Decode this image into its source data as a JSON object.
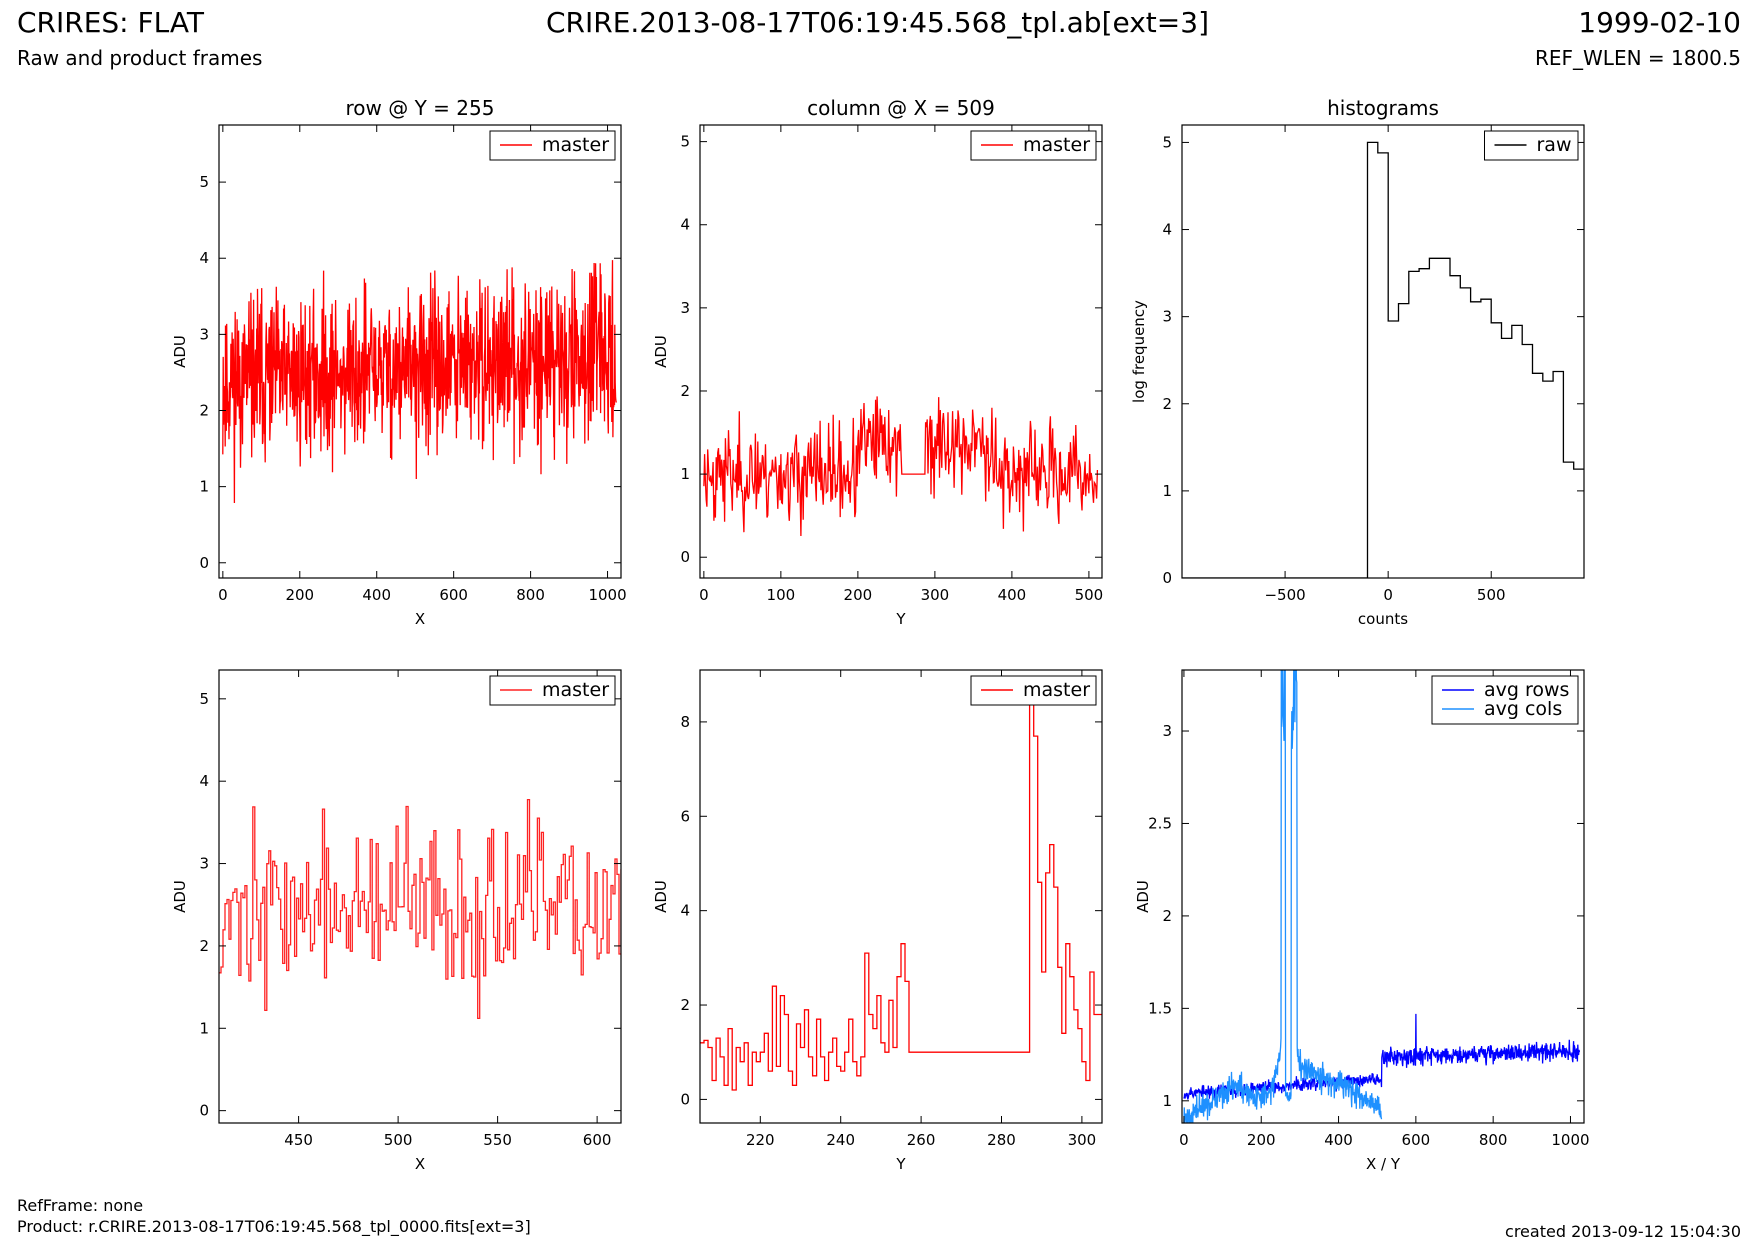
{
  "header": {
    "title_left": "CRIRES: FLAT",
    "subtitle_left": "Raw and product frames",
    "title_center": "CRIRE.2013-08-17T06:19:45.568_tpl.ab[ext=3]",
    "title_right": "1999-02-10",
    "subtitle_right": "REF_WLEN = 1800.5"
  },
  "footer": {
    "refframe": "RefFrame: none",
    "product": "Product: r.CRIRE.2013-08-17T06:19:45.568_tpl_0000.fits[ext=3]",
    "created": "created 2013-09-12 15:04:30"
  },
  "colors": {
    "master": "#ff0000",
    "raw": "#000000",
    "avg_rows": "#0000ff",
    "avg_cols": "#1e90ff"
  },
  "chart_data": [
    {
      "type": "line",
      "title": "row @ Y = 255",
      "xlabel": "X",
      "ylabel": "ADU",
      "xlim": [
        -10,
        1035
      ],
      "ylim": [
        -0.2,
        5.75
      ],
      "xticks": [
        0,
        200,
        400,
        600,
        800,
        1000
      ],
      "yticks": [
        0,
        1,
        2,
        3,
        4,
        5
      ],
      "legend": "top-right",
      "series": [
        {
          "name": "master",
          "color": "#ff0000",
          "step": false,
          "generator": {
            "kind": "noise",
            "x0": 0,
            "x1": 1023,
            "n": 1024,
            "base": 2.55,
            "amp": 0.75,
            "trend": 0.35,
            "seed": 11,
            "lo": 0.2,
            "hi": 4.5
          }
        }
      ]
    },
    {
      "type": "line",
      "title": "column @ X = 509",
      "xlabel": "Y",
      "ylabel": "ADU",
      "xlim": [
        -5,
        517
      ],
      "ylim": [
        -0.25,
        5.2
      ],
      "xticks": [
        0,
        100,
        200,
        300,
        400,
        500
      ],
      "yticks": [
        0,
        1,
        2,
        3,
        4,
        5
      ],
      "legend": "top-right",
      "series": [
        {
          "name": "master",
          "color": "#ff0000",
          "step": false,
          "generator": {
            "kind": "column",
            "x0": 0,
            "x1": 511,
            "n": 512,
            "flat_from": 257,
            "flat_to": 287,
            "flat_value": 1.0,
            "base": 1.0,
            "amp": 0.4,
            "seed": 23,
            "spikes": [
              [
                286,
                2.8
              ],
              [
                288,
                5.2
              ],
              [
                290,
                4.9
              ],
              [
                292,
                3.4
              ],
              [
                294,
                2.7
              ],
              [
                296,
                3.6
              ],
              [
                250,
                2.6
              ],
              [
                244,
                3.1
              ],
              [
                254,
                3.3
              ],
              [
                366,
                3.4
              ],
              [
                180,
                2.5
              ],
              [
                130,
                2.4
              ]
            ]
          }
        }
      ]
    },
    {
      "type": "line",
      "title": "histograms",
      "xlabel": "counts",
      "ylabel": "log frequency",
      "xlim": [
        -1000,
        950
      ],
      "ylim": [
        0,
        5.2
      ],
      "xticks": [
        -500,
        0,
        500
      ],
      "yticks": [
        0,
        1,
        2,
        3,
        4,
        5
      ],
      "legend": "top-right",
      "series": [
        {
          "name": "raw",
          "color": "#000000",
          "step": true,
          "x": [
            -1000,
            -100,
            -100,
            -50,
            0,
            50,
            100,
            150,
            200,
            250,
            300,
            350,
            400,
            450,
            500,
            550,
            600,
            650,
            700,
            750,
            800,
            850,
            900,
            950
          ],
          "y": [
            0,
            0,
            5.0,
            4.88,
            2.95,
            3.15,
            3.52,
            3.55,
            3.67,
            3.67,
            3.47,
            3.33,
            3.17,
            3.2,
            2.93,
            2.75,
            2.9,
            2.68,
            2.35,
            2.26,
            2.37,
            1.33,
            1.25,
            1.25
          ]
        }
      ]
    },
    {
      "type": "line",
      "title": "",
      "xlabel": "X",
      "ylabel": "ADU",
      "xlim": [
        410,
        612
      ],
      "ylim": [
        -0.15,
        5.35
      ],
      "xticks": [
        450,
        500,
        550,
        600
      ],
      "yticks": [
        0,
        1,
        2,
        3,
        4,
        5
      ],
      "legend": "top-right",
      "series": [
        {
          "name": "master",
          "color": "#ff2222",
          "step": true,
          "generator": {
            "kind": "noise",
            "x0": 410,
            "x1": 612,
            "n": 203,
            "base": 2.45,
            "amp": 0.7,
            "trend": 0,
            "seed": 37,
            "lo": 0.3,
            "hi": 4.2
          }
        }
      ]
    },
    {
      "type": "line",
      "title": "",
      "xlabel": "Y",
      "ylabel": "ADU",
      "xlim": [
        205,
        305
      ],
      "ylim": [
        -0.5,
        9.1
      ],
      "xticks": [
        220,
        240,
        260,
        280,
        300
      ],
      "yticks": [
        0,
        2,
        4,
        6,
        8
      ],
      "legend": "top-right",
      "series": [
        {
          "name": "master",
          "color": "#ff0000",
          "step": true,
          "x": [
            205,
            206,
            207,
            208,
            209,
            210,
            211,
            212,
            213,
            214,
            215,
            216,
            217,
            218,
            219,
            220,
            221,
            222,
            223,
            224,
            225,
            226,
            227,
            228,
            229,
            230,
            231,
            232,
            233,
            234,
            235,
            236,
            237,
            238,
            239,
            240,
            241,
            242,
            243,
            244,
            245,
            246,
            247,
            248,
            249,
            250,
            251,
            252,
            253,
            254,
            255,
            256,
            257,
            287,
            288,
            289,
            290,
            291,
            292,
            293,
            294,
            295,
            296,
            297,
            298,
            299,
            300,
            301,
            302,
            303,
            304,
            305
          ],
          "y": [
            1.2,
            1.25,
            1.1,
            0.4,
            1.3,
            0.9,
            0.3,
            1.5,
            0.2,
            1.1,
            0.8,
            1.2,
            0.3,
            1.0,
            0.8,
            1.0,
            1.4,
            0.6,
            2.4,
            0.7,
            2.2,
            1.8,
            0.6,
            0.3,
            1.6,
            1.1,
            1.9,
            0.9,
            0.5,
            1.7,
            0.9,
            0.4,
            1.0,
            1.3,
            0.7,
            0.6,
            1.0,
            1.7,
            0.8,
            0.5,
            0.9,
            3.1,
            1.8,
            1.5,
            2.2,
            1.2,
            1.0,
            2.1,
            1.1,
            2.6,
            3.3,
            2.5,
            1.0,
            8.8,
            7.7,
            4.6,
            2.7,
            4.8,
            5.4,
            4.5,
            2.8,
            1.4,
            3.3,
            2.6,
            1.9,
            1.5,
            0.8,
            0.4,
            2.7,
            1.8,
            1.8,
            1.8
          ]
        }
      ]
    },
    {
      "type": "line",
      "title": "",
      "xlabel": "X / Y",
      "ylabel": "ADU",
      "xlim": [
        -5,
        1035
      ],
      "ylim": [
        0.88,
        3.33
      ],
      "xticks": [
        0,
        200,
        400,
        600,
        800,
        1000
      ],
      "yticks": [
        1.0,
        1.5,
        2.0,
        2.5,
        3.0
      ],
      "legend": "top-right",
      "series": [
        {
          "name": "avg rows",
          "color": "#0000ff",
          "step": false,
          "generator": {
            "kind": "avgrows",
            "x0": 0,
            "x1": 1023,
            "n": 1024,
            "seed": 53
          }
        },
        {
          "name": "avg cols",
          "color": "#1e90ff",
          "step": false,
          "generator": {
            "kind": "avgcols",
            "x0": 0,
            "x1": 511,
            "n": 512,
            "seed": 71
          }
        }
      ]
    }
  ]
}
